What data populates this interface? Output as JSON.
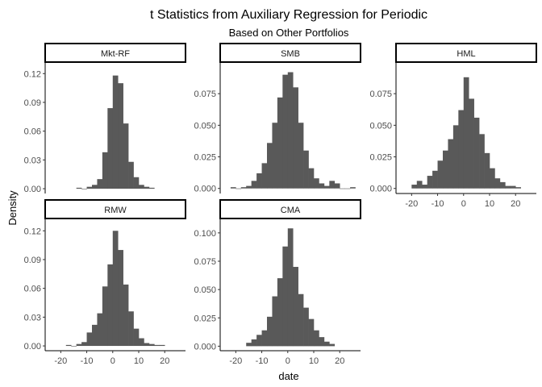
{
  "chart_data": {
    "type": "histogram-facets",
    "title": "t Statistics from Auxiliary Regression for Periodic",
    "subtitle": "Based on Other Portfolios",
    "xlabel": "date",
    "ylabel": "Density",
    "bar_color": "#595959",
    "bin_width": 2,
    "xlim": [
      -26,
      28
    ],
    "x_ticks": [
      -20,
      -10,
      0,
      10,
      20
    ],
    "panels": [
      {
        "name": "Mkt-RF",
        "ylim": [
          -0.005,
          0.132
        ],
        "y_ticks": [
          0.0,
          0.03,
          0.06,
          0.09,
          0.12
        ],
        "y_tick_labels": [
          "0.00",
          "0.03",
          "0.06",
          "0.09",
          "0.12"
        ],
        "show_x_axis": false,
        "bin_starts": [
          -14,
          -12,
          -10,
          -8,
          -6,
          -4,
          -2,
          0,
          2,
          4,
          6,
          8,
          10,
          12,
          14
        ],
        "values": [
          0.001,
          0.0,
          0.002,
          0.004,
          0.01,
          0.038,
          0.084,
          0.118,
          0.11,
          0.068,
          0.028,
          0.012,
          0.004,
          0.002,
          0.001
        ]
      },
      {
        "name": "SMB",
        "ylim": [
          -0.004,
          0.1
        ],
        "y_ticks": [
          0.0,
          0.025,
          0.05,
          0.075
        ],
        "y_tick_labels": [
          "0.000",
          "0.025",
          "0.050",
          "0.075"
        ],
        "show_x_axis": false,
        "bin_starts": [
          -22,
          -20,
          -18,
          -16,
          -14,
          -12,
          -10,
          -8,
          -6,
          -4,
          -2,
          0,
          2,
          4,
          6,
          8,
          10,
          12,
          14,
          16,
          18,
          20,
          22,
          24
        ],
        "values": [
          0.001,
          0.0,
          0.001,
          0.002,
          0.006,
          0.012,
          0.02,
          0.036,
          0.052,
          0.072,
          0.09,
          0.092,
          0.08,
          0.052,
          0.03,
          0.016,
          0.008,
          0.004,
          0.002,
          0.006,
          0.004,
          0.0,
          0.0,
          0.001
        ]
      },
      {
        "name": "HML",
        "ylim": [
          -0.004,
          0.1
        ],
        "y_ticks": [
          0.0,
          0.025,
          0.05,
          0.075
        ],
        "y_tick_labels": [
          "0.000",
          "0.025",
          "0.050",
          "0.075"
        ],
        "show_x_axis": true,
        "bin_starts": [
          -20,
          -18,
          -16,
          -14,
          -12,
          -10,
          -8,
          -6,
          -4,
          -2,
          0,
          2,
          4,
          6,
          8,
          10,
          12,
          14,
          16,
          18,
          20
        ],
        "values": [
          0.003,
          0.006,
          0.003,
          0.01,
          0.014,
          0.022,
          0.03,
          0.039,
          0.05,
          0.062,
          0.088,
          0.071,
          0.056,
          0.043,
          0.028,
          0.016,
          0.008,
          0.005,
          0.002,
          0.002,
          0.001
        ]
      },
      {
        "name": "RMW",
        "ylim": [
          -0.005,
          0.132
        ],
        "y_ticks": [
          0.0,
          0.03,
          0.06,
          0.09,
          0.12
        ],
        "y_tick_labels": [
          "0.00",
          "0.03",
          "0.06",
          "0.09",
          "0.12"
        ],
        "show_x_axis": true,
        "bin_starts": [
          -18,
          -16,
          -14,
          -12,
          -10,
          -8,
          -6,
          -4,
          -2,
          0,
          2,
          4,
          6,
          8,
          10,
          12,
          14,
          16,
          18
        ],
        "values": [
          0.001,
          0.0,
          0.002,
          0.004,
          0.014,
          0.022,
          0.034,
          0.062,
          0.085,
          0.12,
          0.1,
          0.064,
          0.036,
          0.018,
          0.008,
          0.003,
          0.002,
          0.001,
          0.001
        ]
      },
      {
        "name": "CMA",
        "ylim": [
          -0.004,
          0.112
        ],
        "y_ticks": [
          0.0,
          0.025,
          0.05,
          0.075,
          0.1
        ],
        "y_tick_labels": [
          "0.000",
          "0.025",
          "0.050",
          "0.075",
          "0.100"
        ],
        "show_x_axis": true,
        "bin_starts": [
          -16,
          -14,
          -12,
          -10,
          -8,
          -6,
          -4,
          -2,
          0,
          2,
          4,
          6,
          8,
          10,
          12,
          14,
          16
        ],
        "values": [
          0.003,
          0.006,
          0.01,
          0.014,
          0.026,
          0.044,
          0.06,
          0.088,
          0.104,
          0.07,
          0.046,
          0.034,
          0.024,
          0.014,
          0.008,
          0.004,
          0.002
        ]
      }
    ]
  }
}
